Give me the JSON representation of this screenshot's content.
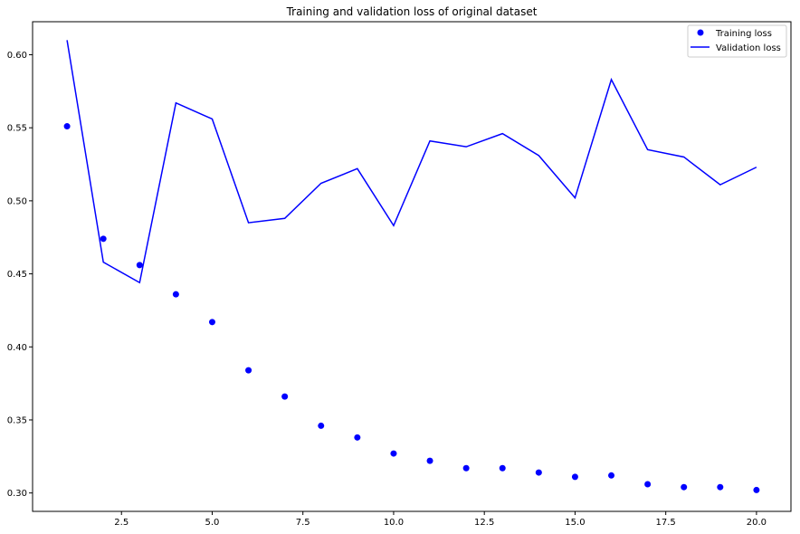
{
  "chart_data": {
    "type": "line",
    "title": "Training and validation loss of original dataset",
    "xlabel": "",
    "ylabel": "",
    "xlim": [
      0.05,
      20.95
    ],
    "ylim": [
      0.2874,
      0.6226
    ],
    "x_ticks": [
      2.5,
      5.0,
      7.5,
      10.0,
      12.5,
      15.0,
      17.5,
      20.0
    ],
    "x_tick_labels": [
      "2.5",
      "5.0",
      "7.5",
      "10.0",
      "12.5",
      "15.0",
      "17.5",
      "20.0"
    ],
    "y_ticks": [
      0.3,
      0.35,
      0.4,
      0.45,
      0.5,
      0.55,
      0.6
    ],
    "y_tick_labels": [
      "0.30",
      "0.35",
      "0.40",
      "0.45",
      "0.50",
      "0.55",
      "0.60"
    ],
    "grid": false,
    "legend_position": "top-right",
    "x": [
      1,
      2,
      3,
      4,
      5,
      6,
      7,
      8,
      9,
      10,
      11,
      12,
      13,
      14,
      15,
      16,
      17,
      18,
      19,
      20
    ],
    "series": [
      {
        "name": "Training loss",
        "style": "markers",
        "color": "#0000ff",
        "values": [
          0.551,
          0.474,
          0.456,
          0.436,
          0.417,
          0.384,
          0.366,
          0.346,
          0.338,
          0.327,
          0.322,
          0.317,
          0.317,
          0.314,
          0.311,
          0.312,
          0.306,
          0.304,
          0.304,
          0.302
        ]
      },
      {
        "name": "Validation loss",
        "style": "line",
        "color": "#0000ff",
        "values": [
          0.61,
          0.458,
          0.444,
          0.567,
          0.556,
          0.485,
          0.488,
          0.512,
          0.522,
          0.483,
          0.541,
          0.537,
          0.546,
          0.531,
          0.502,
          0.583,
          0.535,
          0.53,
          0.511,
          0.523
        ]
      }
    ]
  }
}
